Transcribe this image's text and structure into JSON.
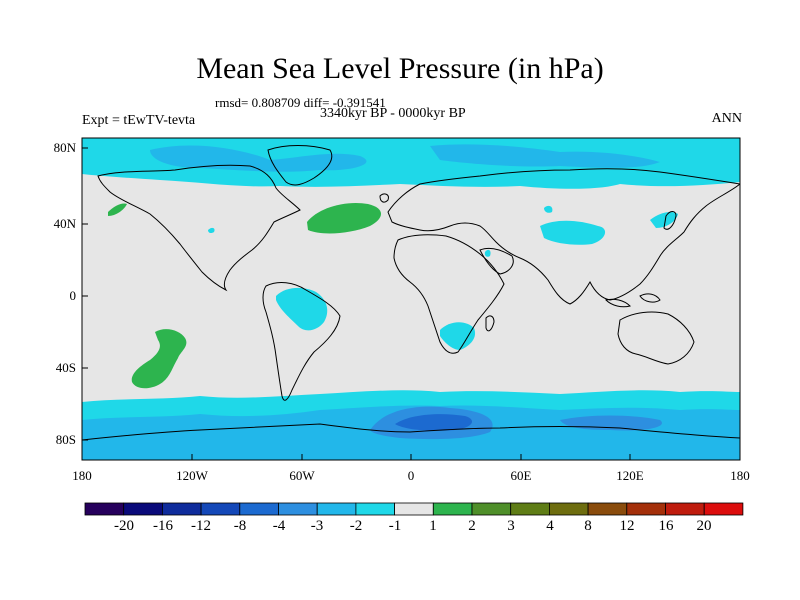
{
  "title": "Mean Sea Level Pressure (in hPa)",
  "stats_line": "rmsd= 0.808709 diff= -0.391541",
  "period": "3340kyr BP - 0000kyr BP",
  "experiment": "Expt = tEwTV-tevta",
  "season": "ANN",
  "lat_ticks": [
    "80N",
    "40N",
    "0",
    "40S",
    "80S"
  ],
  "lon_ticks": [
    "180",
    "120W",
    "60W",
    "0",
    "60E",
    "120E",
    "180"
  ],
  "colorbar": {
    "colors": [
      "#26005c",
      "#0a0a7a",
      "#0f2c9c",
      "#1448b8",
      "#1c6ad0",
      "#2d8fe0",
      "#22b7ea",
      "#1fd8e8",
      "#e6e6e6",
      "#2db44e",
      "#4f8f2a",
      "#5f7d16",
      "#6e6d0f",
      "#8a4c0c",
      "#a4300a",
      "#bf1c0e",
      "#dc0d0d"
    ],
    "labels": [
      "-20",
      "-16",
      "-12",
      "-8",
      "-4",
      "-3",
      "-2",
      "-1",
      "1",
      "2",
      "3",
      "4",
      "8",
      "12",
      "16",
      "20"
    ]
  },
  "icons": {
    "land": "coastline-outline",
    "positive_anomaly": "green-blob",
    "negative_anomaly": "blue-blob"
  }
}
